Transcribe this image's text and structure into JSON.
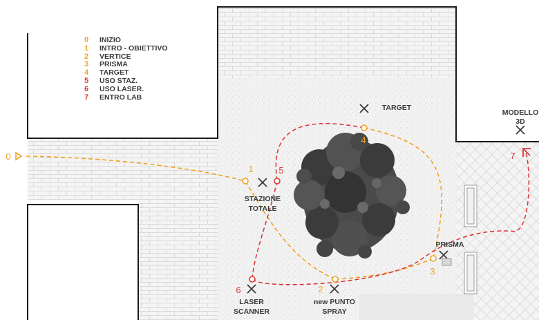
{
  "colors": {
    "orange": "#f0a322",
    "red": "#e0363a",
    "wall": "#1a1a1a",
    "label": "#3a3a3a"
  },
  "legend": [
    {
      "num": "0",
      "label": "INIZIO",
      "color": "orange"
    },
    {
      "num": "1",
      "label": "INTRO - OBIETTIVO",
      "color": "orange"
    },
    {
      "num": "2",
      "label": "VERTICE",
      "color": "orange"
    },
    {
      "num": "3",
      "label": "PRISMA",
      "color": "orange"
    },
    {
      "num": "4",
      "label": "TARGET",
      "color": "orange"
    },
    {
      "num": "5",
      "label": "USO STAZ.",
      "color": "red"
    },
    {
      "num": "6",
      "label": "USO LASER.",
      "color": "red"
    },
    {
      "num": "7",
      "label": "ENTRO LAB",
      "color": "red"
    }
  ],
  "stations": {
    "target": {
      "label": "TARGET"
    },
    "modello": {
      "label_line1": "MODELLO",
      "label_line2": "3D"
    },
    "stazione": {
      "label_line1": "STAZIONE",
      "label_line2": "TOTALE"
    },
    "prisma": {
      "label": "PRISMA"
    },
    "laser": {
      "label_line1": "LASER",
      "label_line2": "SCANNER"
    },
    "punto": {
      "label_line1": "new PUNTO",
      "label_line2": "SPRAY"
    }
  },
  "waypoints": {
    "p0": "0",
    "p1": "1",
    "p2": "2",
    "p3": "3",
    "p4": "4",
    "p5": "5",
    "p6": "6",
    "p7": "7"
  }
}
